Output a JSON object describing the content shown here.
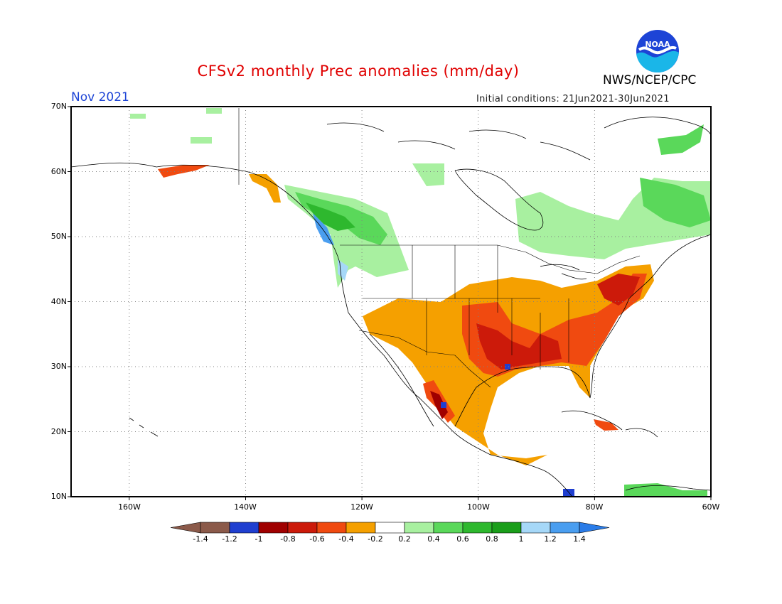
{
  "header": {
    "title": "CFSv2 monthly Prec anomalies (mm/day)",
    "org": "NWS/NCEP/CPC",
    "month": "Nov 2021",
    "initial_conditions": "Initial conditions: 21Jun2021-30Jun2021",
    "logo_text": "NOAA"
  },
  "colors": {
    "title": "#e00000",
    "month": "#1d44d6",
    "dry_-1.4": "#8b5a4a",
    "dry_-1.2": "#1f3fd0",
    "dry_-1.0": "#a00000",
    "dry_-0.8": "#cc1a0a",
    "dry_-0.6": "#f04a10",
    "dry_-0.4": "#f5a000",
    "neutral": "#ffffff",
    "wet_0.2": "#a8f0a0",
    "wet_0.4": "#5ad85a",
    "wet_0.6": "#2eb82e",
    "wet_0.8": "#1a9e1a",
    "wet_1.0": "#a6d8f8",
    "wet_1.2": "#4a9ef0",
    "wet_1.4": "#1f4fd8"
  },
  "map": {
    "lat_labels": [
      "70N",
      "60N",
      "50N",
      "40N",
      "30N",
      "20N",
      "10N"
    ],
    "lon_labels": [
      "160W",
      "140W",
      "120W",
      "100W",
      "80W",
      "60W"
    ],
    "lat_range": [
      10,
      70
    ],
    "lon_range": [
      -170,
      -60
    ],
    "grid": "dotted"
  },
  "colorbar": {
    "labels": [
      "-1.4",
      "-1.2",
      "-1",
      "-0.8",
      "-0.6",
      "-0.4",
      "-0.2",
      "0.2",
      "0.4",
      "0.6",
      "0.8",
      "1",
      "1.2",
      "1.4"
    ],
    "colors": [
      "#8b5a4a",
      "#1f3fd0",
      "#a00000",
      "#cc1a0a",
      "#f04a10",
      "#f5a000",
      "#ffffff",
      "#a8f0a0",
      "#5ad85a",
      "#2eb82e",
      "#1a9e1a",
      "#a6d8f8",
      "#4a9ef0"
    ],
    "low_arrow_color": "#8b5a4a",
    "high_arrow_color": "#2a7ce8"
  }
}
